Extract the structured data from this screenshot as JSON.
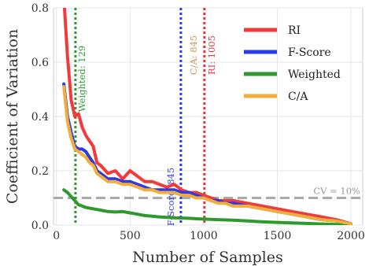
{
  "chart_data": {
    "type": "line",
    "xlabel": "Number of Samples",
    "ylabel": "Coefficient of Variation",
    "xlim": [
      -20,
      2080
    ],
    "ylim": [
      0,
      0.8
    ],
    "xticks": [
      0,
      500,
      1000,
      1500,
      2000
    ],
    "yticks": [
      0.0,
      0.2,
      0.4,
      0.6,
      0.8
    ],
    "xtick_labels": [
      "0",
      "500",
      "1000",
      "1500",
      "2000"
    ],
    "ytick_labels": [
      "0.0",
      "0.2",
      "0.4",
      "0.6",
      "0.8"
    ],
    "grid": true,
    "legend_position": "top-right",
    "series": [
      {
        "name": "RI",
        "color": "#f23a3a",
        "x": [
          50,
          75,
          100,
          125,
          150,
          175,
          200,
          225,
          250,
          275,
          300,
          350,
          400,
          450,
          500,
          550,
          600,
          650,
          700,
          750,
          800,
          850,
          900,
          950,
          1000,
          1050,
          1100,
          1150,
          1200,
          1300,
          1400,
          1500,
          1600,
          1700,
          1800,
          1900,
          2000
        ],
        "y": [
          0.84,
          0.62,
          0.46,
          0.4,
          0.41,
          0.36,
          0.33,
          0.31,
          0.29,
          0.23,
          0.22,
          0.19,
          0.2,
          0.17,
          0.2,
          0.18,
          0.16,
          0.16,
          0.15,
          0.14,
          0.15,
          0.13,
          0.12,
          0.12,
          0.11,
          0.1,
          0.09,
          0.09,
          0.09,
          0.08,
          0.07,
          0.06,
          0.05,
          0.04,
          0.03,
          0.02,
          0.005
        ]
      },
      {
        "name": "F-Score",
        "color": "#2b3ae8",
        "x": [
          50,
          75,
          100,
          125,
          150,
          175,
          200,
          225,
          250,
          275,
          300,
          350,
          400,
          450,
          500,
          550,
          600,
          650,
          700,
          750,
          800,
          850,
          900,
          950,
          1000,
          1050,
          1100,
          1150,
          1200,
          1300,
          1400,
          1500,
          1600,
          1700,
          1800,
          1900,
          2000
        ],
        "y": [
          0.52,
          0.4,
          0.34,
          0.29,
          0.28,
          0.28,
          0.27,
          0.25,
          0.23,
          0.2,
          0.19,
          0.17,
          0.17,
          0.16,
          0.16,
          0.15,
          0.14,
          0.13,
          0.13,
          0.13,
          0.13,
          0.12,
          0.12,
          0.11,
          0.1,
          0.09,
          0.09,
          0.08,
          0.08,
          0.07,
          0.06,
          0.05,
          0.04,
          0.03,
          0.02,
          0.015,
          0.005
        ]
      },
      {
        "name": "Weighted",
        "color": "#2e9a2e",
        "x": [
          50,
          75,
          100,
          125,
          150,
          175,
          200,
          250,
          300,
          350,
          400,
          450,
          500,
          550,
          600,
          700,
          800,
          900,
          1000,
          1100,
          1200,
          1300,
          1400,
          1500,
          1600,
          1700,
          1800,
          1900,
          2000
        ],
        "y": [
          0.13,
          0.12,
          0.105,
          0.09,
          0.075,
          0.07,
          0.065,
          0.06,
          0.055,
          0.05,
          0.048,
          0.05,
          0.045,
          0.04,
          0.035,
          0.03,
          0.027,
          0.025,
          0.022,
          0.02,
          0.018,
          0.015,
          0.012,
          0.01,
          0.008,
          0.006,
          0.004,
          0.002,
          0.001
        ]
      },
      {
        "name": "C/A",
        "color": "#f2ae3a",
        "x": [
          50,
          75,
          100,
          125,
          150,
          175,
          200,
          225,
          250,
          275,
          300,
          350,
          400,
          450,
          500,
          550,
          600,
          650,
          700,
          750,
          800,
          850,
          900,
          950,
          1000,
          1050,
          1100,
          1150,
          1200,
          1300,
          1400,
          1500,
          1600,
          1700,
          1800,
          1900,
          2000
        ],
        "y": [
          0.51,
          0.38,
          0.32,
          0.28,
          0.27,
          0.26,
          0.25,
          0.23,
          0.22,
          0.19,
          0.18,
          0.16,
          0.16,
          0.15,
          0.15,
          0.14,
          0.13,
          0.13,
          0.12,
          0.12,
          0.12,
          0.11,
          0.11,
          0.1,
          0.1,
          0.09,
          0.08,
          0.08,
          0.07,
          0.07,
          0.06,
          0.05,
          0.04,
          0.03,
          0.02,
          0.015,
          0.005
        ]
      }
    ],
    "vlines": [
      {
        "x": 129,
        "label": "Weighted: 129",
        "color": "#2e9a2e"
      },
      {
        "x": 845,
        "label": "F-Score: 845",
        "color": "#2b3ae8"
      },
      {
        "x": 845,
        "label": "C/A: 845",
        "color": "#c8945a"
      },
      {
        "x": 1005,
        "label": "RI: 1005",
        "color": "#e23a3a"
      }
    ],
    "hline": {
      "y": 0.1,
      "label": "CV = 10%",
      "color": "#aaaaaa"
    }
  }
}
